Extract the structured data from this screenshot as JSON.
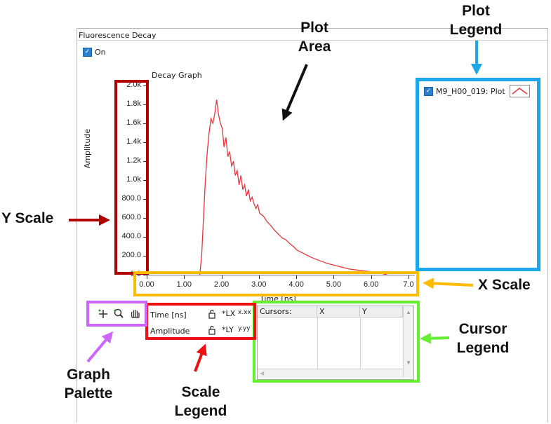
{
  "window": {
    "title": "Fluorescence Decay",
    "on_checkbox": {
      "label": "On",
      "checked": true
    }
  },
  "graph": {
    "title": "Decay Graph",
    "ylabel": "Amplitude",
    "xlabel": "Time [ns]",
    "y_ticks": [
      "2.0k",
      "1.8k",
      "1.6k",
      "1.4k",
      "1.2k",
      "1.0k",
      "800.0",
      "600.0",
      "400.0",
      "200.0",
      "0.0"
    ],
    "x_ticks": [
      "0.00",
      "1.00",
      "2.00",
      "3.00",
      "4.00",
      "5.00",
      "6.00",
      "7.0"
    ]
  },
  "plot_legend": {
    "label": "M9_H00_019: Plot",
    "checked": true,
    "line_color": "#e8343a"
  },
  "graph_palette": {
    "tools": [
      "cursor-move-icon",
      "zoom-icon",
      "pan-hand-icon"
    ]
  },
  "scale_legend": {
    "rows": [
      {
        "name": "Time [ns]",
        "lock": "lock-icon",
        "autoscale": "*LX",
        "format": "x.xx"
      },
      {
        "name": "Amplitude",
        "lock": "lock-icon",
        "autoscale": "*LY",
        "format": "y.yy"
      }
    ]
  },
  "cursor_legend": {
    "headers": [
      "Cursors:",
      "X",
      "Y"
    ]
  },
  "annotations": {
    "plot_area": [
      "Plot",
      "Area"
    ],
    "plot_legend": [
      "Plot",
      "Legend"
    ],
    "y_scale": "Y Scale",
    "x_scale": "X Scale",
    "cursor_legend": [
      "Cursor",
      "Legend"
    ],
    "graph_palette": [
      "Graph",
      "Palette"
    ],
    "scale_legend": [
      "Scale",
      "Legend"
    ]
  },
  "colors": {
    "plot_line": "#e8343a",
    "y_scale_box": "#b00000",
    "x_scale_box": "#ffbb00",
    "plot_legend_box": "#1ea7e8",
    "cursor_legend_box": "#66ee33",
    "scale_legend_box": "#ee1111",
    "graph_palette_box": "#cc66ff",
    "checkbox": "#2c7fcc"
  },
  "chart_data": {
    "type": "line",
    "title": "Decay Graph",
    "xlabel": "Time [ns]",
    "ylabel": "Amplitude",
    "xlim": [
      0,
      7
    ],
    "ylim": [
      0,
      2000
    ],
    "series": [
      {
        "name": "M9_H00_019: Plot",
        "x": [
          1.4,
          1.45,
          1.5,
          1.55,
          1.6,
          1.65,
          1.7,
          1.75,
          1.8,
          1.85,
          1.9,
          1.95,
          2.0,
          2.05,
          2.1,
          2.15,
          2.2,
          2.25,
          2.3,
          2.35,
          2.4,
          2.45,
          2.5,
          2.55,
          2.6,
          2.65,
          2.7,
          2.75,
          2.8,
          2.85,
          2.9,
          2.95,
          3.0,
          3.1,
          3.2,
          3.3,
          3.4,
          3.5,
          3.6,
          3.7,
          3.8,
          3.9,
          4.0,
          4.2,
          4.4,
          4.6,
          4.8,
          5.0,
          5.2,
          5.4,
          5.6,
          5.8,
          6.0,
          6.2,
          6.4
        ],
        "y": [
          0,
          200,
          600,
          1000,
          1300,
          1500,
          1650,
          1600,
          1700,
          1850,
          1700,
          1600,
          1550,
          1350,
          1450,
          1250,
          1300,
          1150,
          1200,
          1050,
          1100,
          950,
          1050,
          900,
          950,
          830,
          900,
          780,
          820,
          750,
          700,
          740,
          650,
          620,
          560,
          520,
          470,
          430,
          390,
          370,
          330,
          300,
          260,
          220,
          180,
          150,
          120,
          100,
          80,
          60,
          50,
          40,
          30,
          20,
          0
        ]
      }
    ]
  }
}
